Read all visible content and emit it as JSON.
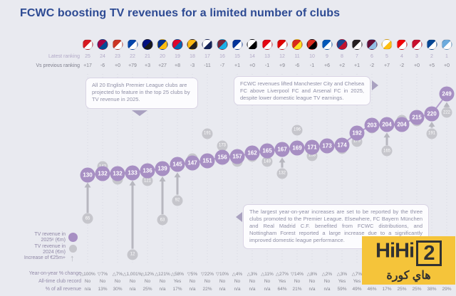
{
  "title": "FCWC boosting TV revenues for a limited number of clubs",
  "header": {
    "latest_label": "Latest ranking",
    "vs_previous_label": "Vs previous ranking"
  },
  "legend": {
    "tv_2025_label": "TV revenue in 2025ᵉ (€m)",
    "tv_2024_label": "TV revenue in 2024 (€m)",
    "increase_label": "Increase of €25m+"
  },
  "callouts": {
    "c1": "All 20 English Premier League clubs are projected to feature in the top 25 clubs by TV revenue in 2025.",
    "c2": "FCWC revenues lifted Manchester City and Chelsea FC above Liverpool FC and Arsenal FC in 2025, despite lower domestic league TV earnings.",
    "c3": "The largest year-on-year increases are set to be reported by the three clubs promoted to the Premier League. Elsewhere, FC Bayern München and Real Madrid C.F. benefited from FCWC distributions, and Nottingham Forest reported a large increase due to a significantly improved domestic league performance."
  },
  "table": {
    "yoy_label": "Year-on-year % change",
    "record_label": "All-time club record",
    "pct_label": "% of all revenue"
  },
  "watermark": {
    "logo_prefix": "HiHi",
    "logo_boxed": "2",
    "subtitle": "هاي كورة"
  },
  "colors": {
    "background": "#e9eaf0",
    "title_blue": "#2d4a93",
    "accent_purple": "#a78fc3",
    "muted_gray": "#c6c6cc",
    "watermark_yellow": "#f5c43a"
  },
  "chart_data": {
    "type": "scatter",
    "unit": "€m",
    "x_axis": "Clubs ranked 25 to 1 by TV revenue",
    "ylim": [
      0,
      260
    ],
    "grid": "vertical-dotted",
    "legend_position": "bottom-left",
    "series": [
      {
        "name": "TV revenue in 2025ᵉ (€m)",
        "color": "#a78fc3"
      },
      {
        "name": "TV revenue in 2024 (€m)",
        "color": "#c6c6cc"
      }
    ],
    "clubs": [
      {
        "rank": "25",
        "club": "southampton",
        "vs_previous": "+17",
        "tv_2025": 130,
        "tv_2024": 65,
        "yoy_change": "△100%",
        "all_time_record": "No",
        "pct_of_all_revenue": "n/a",
        "arrow": true,
        "crest": [
          "#d71920",
          "#ffffff"
        ]
      },
      {
        "rank": "24",
        "club": "barcelona",
        "vs_previous": "-6",
        "tv_2025": 132,
        "tv_2024": 142,
        "yoy_change": "▽7%",
        "all_time_record": "No",
        "pct_of_all_revenue": "13%",
        "arrow": false,
        "crest": [
          "#a50044",
          "#004d98"
        ]
      },
      {
        "rank": "23",
        "club": "atletico-madrid",
        "vs_previous": "+0",
        "tv_2025": 132,
        "tv_2024": 123,
        "yoy_change": "△7%",
        "all_time_record": "No",
        "pct_of_all_revenue": "30%",
        "arrow": false,
        "crest": [
          "#cb3524",
          "#ffffff"
        ]
      },
      {
        "rank": "22",
        "club": "ipswich-town",
        "vs_previous": "+79",
        "tv_2025": 133,
        "tv_2024": 12,
        "yoy_change": "△1,001%",
        "all_time_record": "No",
        "pct_of_all_revenue": "n/a",
        "arrow": true,
        "crest": [
          "#0044a9",
          "#ffffff"
        ]
      },
      {
        "rank": "21",
        "club": "inter-milan",
        "vs_previous": "+3",
        "tv_2025": 136,
        "tv_2024": 121,
        "yoy_change": "△12%",
        "all_time_record": "No",
        "pct_of_all_revenue": "25%",
        "arrow": false,
        "crest": [
          "#010e80",
          "#1a1a1a"
        ]
      },
      {
        "rank": "20",
        "club": "leicester-city",
        "vs_previous": "+27",
        "tv_2025": 139,
        "tv_2024": 63,
        "yoy_change": "△121%",
        "all_time_record": "No",
        "pct_of_all_revenue": "n/a",
        "arrow": true,
        "crest": [
          "#003090",
          "#fdbe11"
        ]
      },
      {
        "rank": "19",
        "club": "bayern-munchen",
        "vs_previous": "+8",
        "tv_2025": 145,
        "tv_2024": 92,
        "yoy_change": "△58%",
        "all_time_record": "Yes",
        "pct_of_all_revenue": "17%",
        "arrow": true,
        "crest": [
          "#dc052d",
          "#0066b2"
        ]
      },
      {
        "rank": "18",
        "club": "wolves",
        "vs_previous": "-3",
        "tv_2025": 147,
        "tv_2024": 154,
        "yoy_change": "▽5%",
        "all_time_record": "No",
        "pct_of_all_revenue": "n/a",
        "arrow": false,
        "crest": [
          "#fdb913",
          "#231f20"
        ]
      },
      {
        "rank": "17",
        "club": "tottenham",
        "vs_previous": "-11",
        "tv_2025": 151,
        "tv_2024": 191,
        "yoy_change": "▽22%",
        "all_time_record": "No",
        "pct_of_all_revenue": "22%",
        "arrow": false,
        "crest": [
          "#ffffff",
          "#132257"
        ]
      },
      {
        "rank": "16",
        "club": "west-ham",
        "vs_previous": "-7",
        "tv_2025": 156,
        "tv_2024": 173,
        "yoy_change": "▽10%",
        "all_time_record": "No",
        "pct_of_all_revenue": "n/a",
        "arrow": false,
        "crest": [
          "#7a263a",
          "#1bb1e7"
        ]
      },
      {
        "rank": "15",
        "club": "everton",
        "vs_previous": "+1",
        "tv_2025": 157,
        "tv_2024": 150,
        "yoy_change": "△4%",
        "all_time_record": "No",
        "pct_of_all_revenue": "n/a",
        "arrow": false,
        "crest": [
          "#003399",
          "#ffffff"
        ]
      },
      {
        "rank": "14",
        "club": "fulham",
        "vs_previous": "+0",
        "tv_2025": 162,
        "tv_2024": 157,
        "yoy_change": "△3%",
        "all_time_record": "No",
        "pct_of_all_revenue": "n/a",
        "arrow": false,
        "crest": [
          "#ffffff",
          "#000000"
        ]
      },
      {
        "rank": "13",
        "club": "brentford",
        "vs_previous": "-1",
        "tv_2025": 165,
        "tv_2024": 149,
        "yoy_change": "△11%",
        "all_time_record": "No",
        "pct_of_all_revenue": "n/a",
        "arrow": false,
        "crest": [
          "#e30613",
          "#ffffff"
        ]
      },
      {
        "rank": "12",
        "club": "nottingham-forest",
        "vs_previous": "+9",
        "tv_2025": 167,
        "tv_2024": 132,
        "yoy_change": "△27%",
        "all_time_record": "Yes",
        "pct_of_all_revenue": "64%",
        "arrow": true,
        "crest": [
          "#dd0000",
          "#ffffff"
        ]
      },
      {
        "rank": "11",
        "club": "manchester-united",
        "vs_previous": "-6",
        "tv_2025": 169,
        "tv_2024": 196,
        "yoy_change": "▽14%",
        "all_time_record": "No",
        "pct_of_all_revenue": "21%",
        "arrow": false,
        "crest": [
          "#da291c",
          "#fbe122"
        ]
      },
      {
        "rank": "10",
        "club": "bournemouth",
        "vs_previous": "-1",
        "tv_2025": 171,
        "tv_2024": 158,
        "yoy_change": "△8%",
        "all_time_record": "No",
        "pct_of_all_revenue": "n/a",
        "arrow": false,
        "crest": [
          "#da291c",
          "#000000"
        ]
      },
      {
        "rank": "9",
        "club": "brighton",
        "vs_previous": "+6",
        "tv_2025": 173,
        "tv_2024": 170,
        "yoy_change": "△2%",
        "all_time_record": "No",
        "pct_of_all_revenue": "n/a",
        "arrow": false,
        "crest": [
          "#0057b8",
          "#ffffff"
        ]
      },
      {
        "rank": "8",
        "club": "crystal-palace",
        "vs_previous": "+2",
        "tv_2025": 174,
        "tv_2024": 168,
        "yoy_change": "△3%",
        "all_time_record": "Yes",
        "pct_of_all_revenue": "59%",
        "arrow": false,
        "crest": [
          "#1b458f",
          "#c4122e"
        ]
      },
      {
        "rank": "7",
        "club": "newcastle",
        "vs_previous": "+1",
        "tv_2025": 192,
        "tv_2024": 179,
        "yoy_change": "△7%",
        "all_time_record": "Yes",
        "pct_of_all_revenue": "49%",
        "arrow": false,
        "crest": [
          "#241f20",
          "#ffffff"
        ]
      },
      {
        "rank": "6",
        "club": "aston-villa",
        "vs_previous": "-2",
        "tv_2025": 203,
        "tv_2024": 199,
        "yoy_change": "",
        "all_time_record": "",
        "pct_of_all_revenue": "46%",
        "arrow": false,
        "crest": [
          "#670e36",
          "#95bfe5"
        ]
      },
      {
        "rank": "5",
        "club": "real-madrid",
        "vs_previous": "+7",
        "tv_2025": 204,
        "tv_2024": 165,
        "yoy_change": "",
        "all_time_record": "",
        "pct_of_all_revenue": "17%",
        "arrow": true,
        "crest": [
          "#ffffff",
          "#febe10"
        ]
      },
      {
        "rank": "4",
        "club": "arsenal",
        "vs_previous": "-2",
        "tv_2025": 204,
        "tv_2024": 211,
        "yoy_change": "",
        "all_time_record": "",
        "pct_of_all_revenue": "25%",
        "arrow": false,
        "crest": [
          "#ef0107",
          "#ffffff"
        ]
      },
      {
        "rank": "3",
        "club": "liverpool",
        "vs_previous": "+0",
        "tv_2025": 215,
        "tv_2024": 210,
        "yoy_change": "",
        "all_time_record": "",
        "pct_of_all_revenue": "25%",
        "arrow": false,
        "crest": [
          "#c8102e",
          "#ffffff"
        ]
      },
      {
        "rank": "2",
        "club": "chelsea",
        "vs_previous": "+5",
        "tv_2025": 220,
        "tv_2024": 191,
        "yoy_change": "",
        "all_time_record": "",
        "pct_of_all_revenue": "38%",
        "arrow": true,
        "crest": [
          "#034694",
          "#ffffff"
        ]
      },
      {
        "rank": "1",
        "club": "manchester-city",
        "vs_previous": "+0",
        "tv_2025": 249,
        "tv_2024": 222,
        "yoy_change": "",
        "all_time_record": "",
        "pct_of_all_revenue": "29%",
        "arrow": true,
        "crest": [
          "#6cabdd",
          "#ffffff"
        ]
      }
    ]
  }
}
